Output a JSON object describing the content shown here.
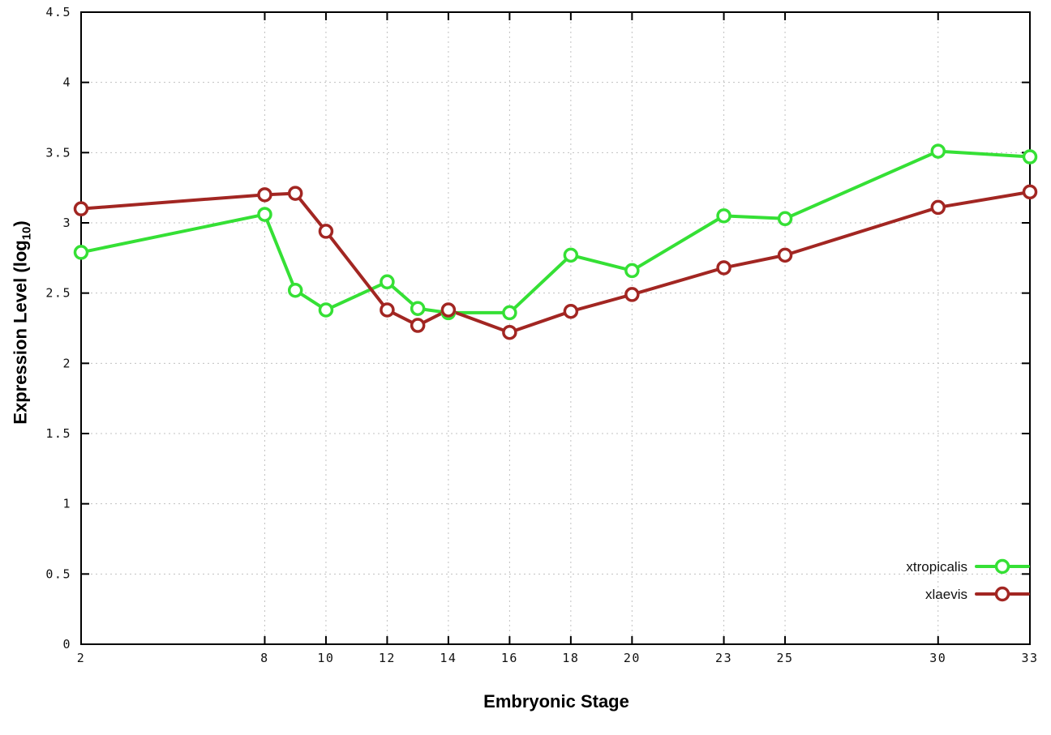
{
  "chart_data": {
    "type": "line",
    "title": "",
    "xlabel": "Embryonic Stage",
    "ylabel": "Expression Level (log10)",
    "ylabel_prefix": "Expression Level (log",
    "ylabel_sub": "10",
    "ylabel_suffix": ")",
    "x": [
      2,
      8,
      9,
      10,
      12,
      13,
      14,
      16,
      18,
      20,
      23,
      25,
      30,
      33
    ],
    "xticks": [
      2,
      8,
      10,
      12,
      14,
      16,
      18,
      20,
      23,
      25,
      30,
      33
    ],
    "yticks": [
      0,
      0.5,
      1,
      1.5,
      2,
      2.5,
      3,
      3.5,
      4,
      4.5
    ],
    "ytick_labels": [
      "0",
      "0.5",
      "1",
      "1.5",
      "2",
      "2.5",
      "3",
      "3.5",
      "4",
      "4.5"
    ],
    "xlim": [
      2,
      33
    ],
    "ylim": [
      0,
      4.5
    ],
    "grid": true,
    "legend_position": "bottom-right",
    "colors": {
      "grid": "#c0c0c0",
      "axis": "#000000",
      "tick_text": "#111111"
    },
    "series": [
      {
        "name": "xtropicalis",
        "color": "#35e035",
        "values": [
          2.79,
          3.06,
          2.52,
          2.38,
          2.58,
          2.39,
          2.36,
          2.36,
          2.77,
          2.66,
          3.05,
          3.03,
          3.51,
          3.47
        ]
      },
      {
        "name": "xlaevis",
        "color": "#a22622",
        "values": [
          3.1,
          3.2,
          3.21,
          2.94,
          2.38,
          2.27,
          2.38,
          2.22,
          2.37,
          2.49,
          2.68,
          2.77,
          3.11,
          3.22
        ]
      }
    ]
  }
}
